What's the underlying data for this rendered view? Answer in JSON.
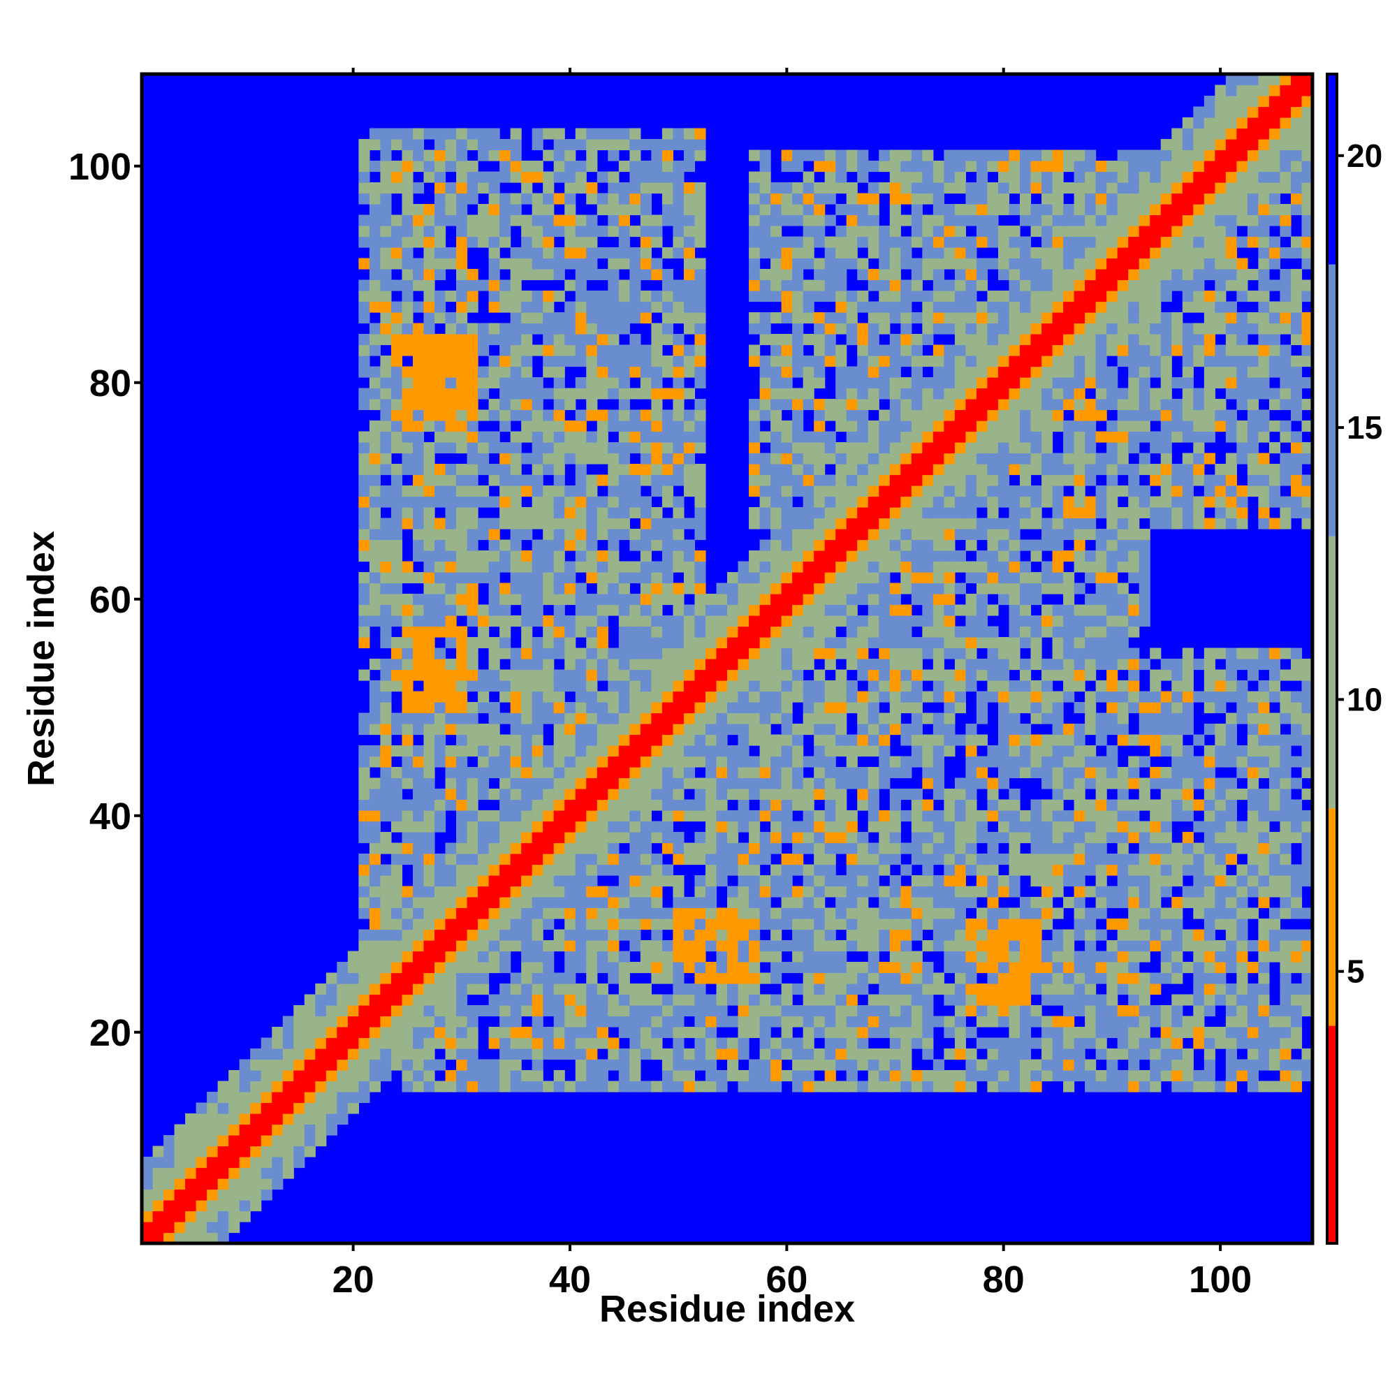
{
  "chart_data": {
    "type": "heatmap",
    "title": "",
    "xlabel": "Residue index",
    "ylabel": "Residue index",
    "n_residues": 108,
    "xlim": [
      1,
      108
    ],
    "ylim": [
      1,
      108
    ],
    "xticks": [
      20,
      40,
      60,
      80,
      100
    ],
    "yticks": [
      20,
      40,
      60,
      80,
      100
    ],
    "colorbar": {
      "ticks": [
        5,
        10,
        15,
        20
      ],
      "range": [
        0,
        21.5
      ],
      "colors": {
        "near": "#ff0000",
        "close": "#ff9900",
        "mid": "#99b38a",
        "far": "#6a8dcf",
        "background": "#0000ff"
      },
      "thresholds": [
        4,
        8,
        13,
        18
      ]
    },
    "structure": {
      "diagonal_band": [
        [
          1,
          108
        ]
      ],
      "contact_blocks": [
        {
          "x": [
            21,
            52
          ],
          "y": [
            56,
            103
          ]
        },
        {
          "x": [
            57,
            108
          ],
          "y": [
            67,
            101
          ]
        },
        {
          "x": [
            24,
            73
          ],
          "y": [
            15,
            56
          ]
        },
        {
          "x": [
            55,
            108
          ],
          "y": [
            15,
            55
          ]
        },
        {
          "x": [
            21,
            58
          ],
          "y": [
            26,
            54
          ]
        },
        {
          "x": [
            63,
            93
          ],
          "y": [
            54,
            78
          ]
        }
      ],
      "highlighted_contacts": [
        {
          "x": [
            24,
            31
          ],
          "y": [
            76,
            84
          ]
        },
        {
          "x": [
            77,
            83
          ],
          "y": [
            23,
            30
          ]
        },
        {
          "x": [
            25,
            30
          ],
          "y": [
            50,
            57
          ]
        },
        {
          "x": [
            50,
            57
          ],
          "y": [
            25,
            31
          ]
        },
        {
          "x": [
            83,
            88
          ],
          "y": [
            77,
            86
          ]
        }
      ]
    }
  }
}
